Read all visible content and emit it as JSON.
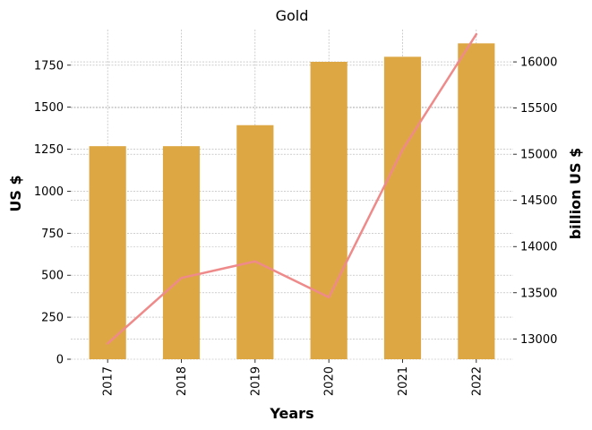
{
  "chart_data": {
    "type": "bar",
    "title": "Gold",
    "xlabel": "Years",
    "ylabel": "US $",
    "y2label": "billion US $",
    "categories": [
      "2017",
      "2018",
      "2019",
      "2020",
      "2021",
      "2022"
    ],
    "series": [
      {
        "values": [
          1268,
          1268,
          1393,
          1770,
          1800,
          1880
        ],
        "kind": "bar",
        "axis": "left",
        "color": "#dda743"
      },
      {
        "values": [
          12950,
          13660,
          13840,
          13450,
          15050,
          16300
        ],
        "kind": "line",
        "axis": "right",
        "color": "#ef8a8a"
      }
    ],
    "ylim": [
      0,
      1962
    ],
    "y2lim": [
      12780,
      16350
    ],
    "yticks": [
      0,
      250,
      500,
      750,
      1000,
      1250,
      1500,
      1750
    ],
    "y2ticks": [
      13000,
      13500,
      14000,
      14500,
      15000,
      15500,
      16000
    ],
    "grid": true,
    "x_tick_rotation": "vertical"
  }
}
